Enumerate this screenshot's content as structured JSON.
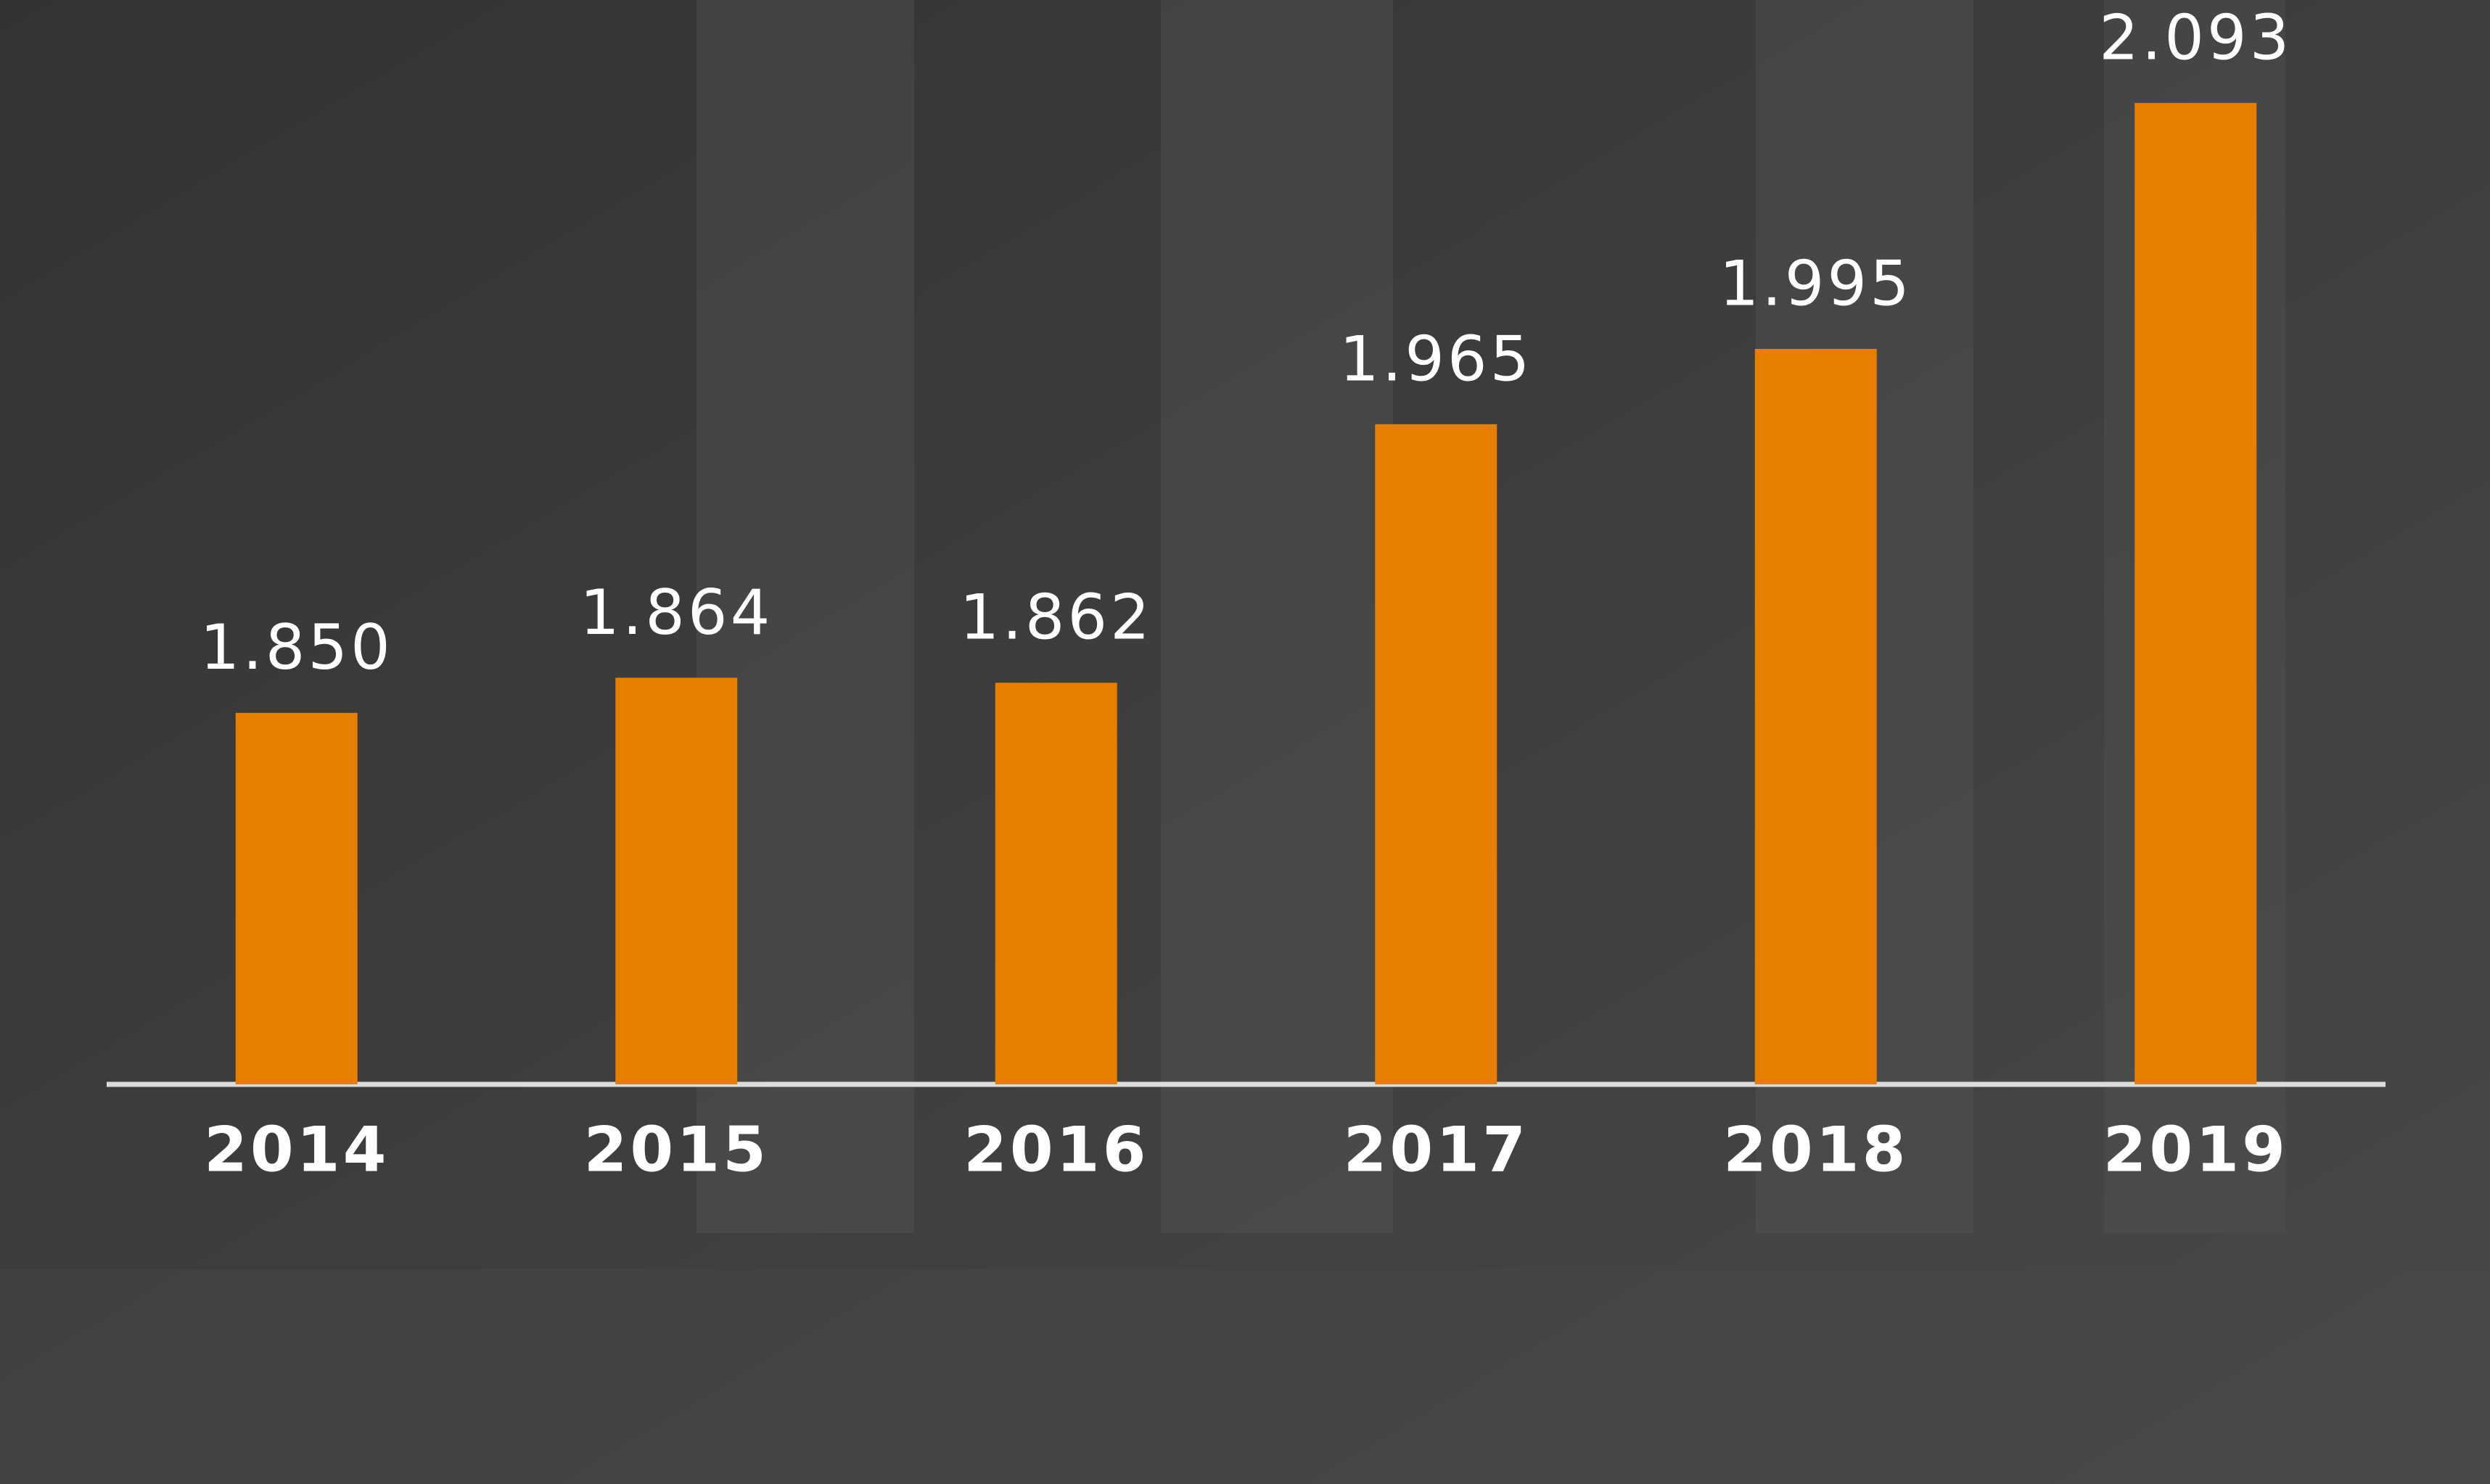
{
  "chart_data": {
    "type": "bar",
    "categories": [
      "2014",
      "2015",
      "2016",
      "2017",
      "2018",
      "2019"
    ],
    "values": [
      1850,
      1864,
      1862,
      1965,
      1995,
      2093
    ],
    "value_labels": [
      "1.850",
      "1.864",
      "1.862",
      "1.965",
      "1.995",
      "2.093"
    ],
    "color": "#e67f00",
    "ylim": [
      1702,
      2134
    ]
  }
}
